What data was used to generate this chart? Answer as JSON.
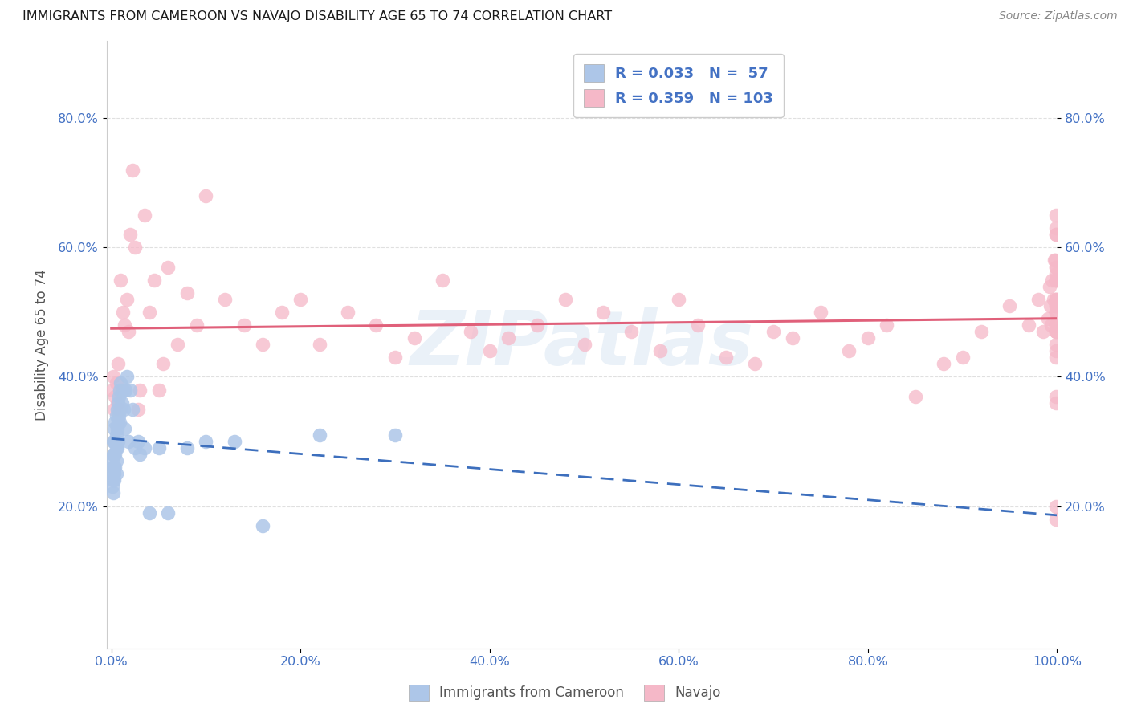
{
  "title": "IMMIGRANTS FROM CAMEROON VS NAVAJO DISABILITY AGE 65 TO 74 CORRELATION CHART",
  "source": "Source: ZipAtlas.com",
  "ylabel": "Disability Age 65 to 74",
  "xlim": [
    -0.005,
    1.0
  ],
  "ylim": [
    -0.02,
    0.92
  ],
  "xticks": [
    0.0,
    0.2,
    0.4,
    0.6,
    0.8,
    1.0
  ],
  "yticks": [
    0.2,
    0.4,
    0.6,
    0.8
  ],
  "xtick_labels": [
    "0.0%",
    "20.0%",
    "40.0%",
    "60.0%",
    "80.0%",
    "100.0%"
  ],
  "ytick_labels": [
    "20.0%",
    "40.0%",
    "60.0%",
    "80.0%"
  ],
  "cameroon_R": "0.033",
  "cameroon_N": "57",
  "navajo_R": "0.359",
  "navajo_N": "103",
  "watermark_text": "ZIPatlas",
  "cameroon_dot_color": "#adc6e8",
  "navajo_dot_color": "#f5b8c8",
  "cameroon_line_color": "#3d6fbd",
  "navajo_line_color": "#e0607a",
  "background_color": "#ffffff",
  "grid_color": "#e0e0e0",
  "title_color": "#1a1a1a",
  "source_color": "#888888",
  "tick_color": "#4472c4",
  "cameroon_x": [
    0.001,
    0.001,
    0.001,
    0.002,
    0.002,
    0.002,
    0.002,
    0.002,
    0.003,
    0.003,
    0.003,
    0.003,
    0.003,
    0.003,
    0.004,
    0.004,
    0.004,
    0.004,
    0.005,
    0.005,
    0.005,
    0.005,
    0.005,
    0.006,
    0.006,
    0.006,
    0.007,
    0.007,
    0.007,
    0.008,
    0.008,
    0.009,
    0.009,
    0.01,
    0.01,
    0.011,
    0.012,
    0.013,
    0.014,
    0.015,
    0.016,
    0.018,
    0.02,
    0.022,
    0.025,
    0.028,
    0.03,
    0.035,
    0.04,
    0.05,
    0.06,
    0.08,
    0.1,
    0.13,
    0.16,
    0.22,
    0.3
  ],
  "cameroon_y": [
    0.27,
    0.25,
    0.23,
    0.3,
    0.28,
    0.26,
    0.24,
    0.22,
    0.32,
    0.3,
    0.28,
    0.26,
    0.25,
    0.24,
    0.33,
    0.3,
    0.28,
    0.26,
    0.34,
    0.31,
    0.29,
    0.27,
    0.25,
    0.35,
    0.32,
    0.29,
    0.36,
    0.33,
    0.3,
    0.37,
    0.34,
    0.38,
    0.33,
    0.39,
    0.35,
    0.36,
    0.38,
    0.35,
    0.32,
    0.38,
    0.4,
    0.3,
    0.38,
    0.35,
    0.29,
    0.3,
    0.28,
    0.29,
    0.19,
    0.29,
    0.19,
    0.29,
    0.3,
    0.3,
    0.17,
    0.31,
    0.31
  ],
  "navajo_x": [
    0.001,
    0.002,
    0.003,
    0.004,
    0.005,
    0.006,
    0.007,
    0.008,
    0.01,
    0.012,
    0.014,
    0.016,
    0.018,
    0.02,
    0.022,
    0.025,
    0.028,
    0.03,
    0.035,
    0.04,
    0.045,
    0.05,
    0.055,
    0.06,
    0.07,
    0.08,
    0.09,
    0.1,
    0.12,
    0.14,
    0.16,
    0.18,
    0.2,
    0.22,
    0.25,
    0.28,
    0.3,
    0.32,
    0.35,
    0.38,
    0.4,
    0.42,
    0.45,
    0.48,
    0.5,
    0.52,
    0.55,
    0.58,
    0.6,
    0.62,
    0.65,
    0.68,
    0.7,
    0.72,
    0.75,
    0.78,
    0.8,
    0.82,
    0.85,
    0.88,
    0.9,
    0.92,
    0.95,
    0.97,
    0.98,
    0.985,
    0.99,
    0.992,
    0.993,
    0.994,
    0.995,
    0.996,
    0.997,
    0.998,
    0.999,
    0.999,
    0.999,
    0.999,
    0.999,
    0.999,
    0.999,
    0.999,
    0.999,
    0.999,
    0.999,
    0.999,
    0.999,
    0.999,
    0.999,
    0.999,
    0.999,
    0.999,
    0.999,
    0.999,
    0.999,
    0.999,
    0.999,
    0.999,
    0.999,
    0.999,
    0.999,
    0.999,
    0.999
  ],
  "navajo_y": [
    0.38,
    0.4,
    0.35,
    0.37,
    0.39,
    0.36,
    0.42,
    0.35,
    0.55,
    0.5,
    0.48,
    0.52,
    0.47,
    0.62,
    0.72,
    0.6,
    0.35,
    0.38,
    0.65,
    0.5,
    0.55,
    0.38,
    0.42,
    0.57,
    0.45,
    0.53,
    0.48,
    0.68,
    0.52,
    0.48,
    0.45,
    0.5,
    0.52,
    0.45,
    0.5,
    0.48,
    0.43,
    0.46,
    0.55,
    0.47,
    0.44,
    0.46,
    0.48,
    0.52,
    0.45,
    0.5,
    0.47,
    0.44,
    0.52,
    0.48,
    0.43,
    0.42,
    0.47,
    0.46,
    0.5,
    0.44,
    0.46,
    0.48,
    0.37,
    0.42,
    0.43,
    0.47,
    0.51,
    0.48,
    0.52,
    0.47,
    0.49,
    0.54,
    0.51,
    0.48,
    0.55,
    0.52,
    0.58,
    0.58,
    0.51,
    0.56,
    0.44,
    0.65,
    0.55,
    0.57,
    0.55,
    0.52,
    0.62,
    0.63,
    0.47,
    0.48,
    0.52,
    0.57,
    0.36,
    0.37,
    0.62,
    0.47,
    0.5,
    0.55,
    0.43,
    0.45,
    0.5,
    0.48,
    0.52,
    0.47,
    0.51,
    0.18,
    0.2
  ]
}
